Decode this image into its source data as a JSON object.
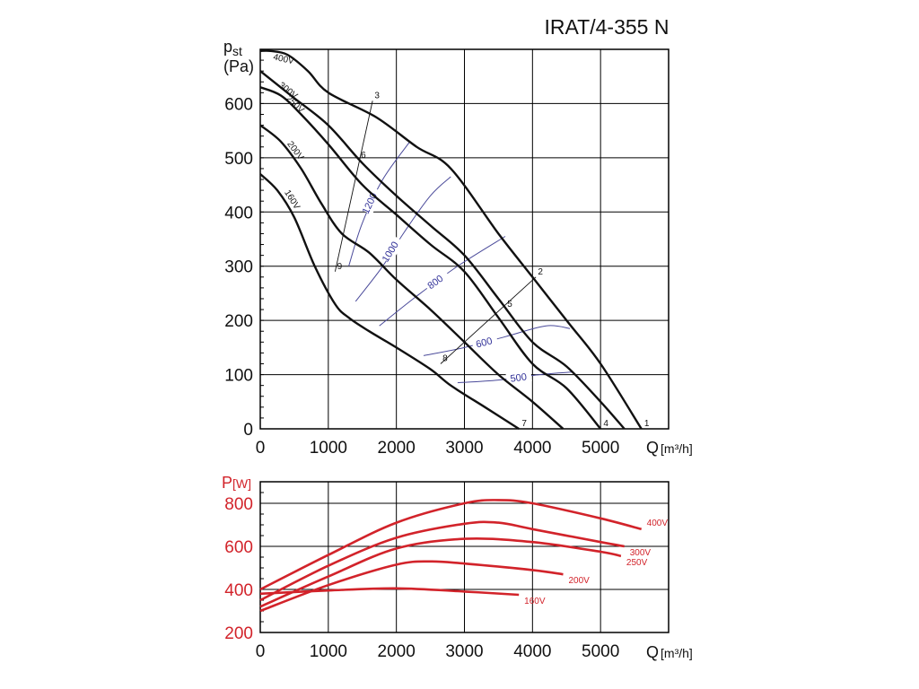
{
  "title": "IRAT/4-355 N",
  "pressure_axis": {
    "symbol": "p",
    "subscript": "st",
    "unit": "(Pa)"
  },
  "power_axis": {
    "symbol": "P",
    "unit": "[W]"
  },
  "flow_axis": {
    "symbol": "Q",
    "unit": "[m³/h]"
  },
  "colors": {
    "pressure": "#111111",
    "efficiency": "#4a4a9a",
    "power": "#d2232a",
    "grid": "#000000"
  },
  "chart_data": [
    {
      "type": "line",
      "name": "pressure",
      "title": "IRAT/4-355 N",
      "xlabel": "Q [m³/h]",
      "ylabel": "p st (Pa)",
      "xlim": [
        0,
        6000
      ],
      "ylim": [
        0,
        700
      ],
      "grid": true,
      "xticks": [
        0,
        1000,
        2000,
        3000,
        4000,
        5000
      ],
      "yticks": [
        0,
        100,
        200,
        300,
        400,
        500,
        600
      ],
      "xtick_labels": [
        "0",
        "1000",
        "2000",
        "3000",
        "4000",
        "5000"
      ],
      "ytick_labels": [
        "0",
        "100",
        "200",
        "300",
        "400",
        "500",
        "600"
      ],
      "series": [
        {
          "name": "400V",
          "x": [
            0,
            150,
            400,
            700,
            1000,
            1700,
            2300,
            2800,
            3500,
            4000,
            4500,
            5000,
            5600
          ],
          "y": [
            697,
            697,
            690,
            660,
            620,
            575,
            520,
            480,
            360,
            280,
            200,
            120,
            0
          ]
        },
        {
          "name": "300V",
          "x": [
            0,
            200,
            500,
            1000,
            1500,
            2000,
            2500,
            3000,
            3500,
            4000,
            4500,
            5000,
            5350
          ],
          "y": [
            660,
            640,
            610,
            560,
            490,
            430,
            375,
            320,
            240,
            160,
            115,
            50,
            0
          ]
        },
        {
          "name": "250V",
          "x": [
            0,
            300,
            600,
            1000,
            1500,
            2000,
            2500,
            3000,
            3500,
            4000,
            4500,
            5000
          ],
          "y": [
            630,
            615,
            580,
            525,
            450,
            395,
            340,
            290,
            205,
            120,
            75,
            0
          ]
        },
        {
          "name": "200V",
          "x": [
            0,
            300,
            600,
            900,
            1200,
            1600,
            2000,
            2500,
            3000,
            3500,
            4000,
            4450
          ],
          "y": [
            560,
            530,
            480,
            415,
            360,
            325,
            275,
            220,
            160,
            100,
            50,
            0
          ]
        },
        {
          "name": "160V",
          "x": [
            0,
            250,
            500,
            800,
            1100,
            1300,
            1600,
            2000,
            2500,
            2800,
            3300,
            3800
          ],
          "y": [
            470,
            440,
            390,
            300,
            230,
            205,
            180,
            150,
            110,
            80,
            40,
            0
          ]
        }
      ],
      "curve_labels": [
        "400V",
        "300V",
        "250V",
        "200V",
        "160V"
      ],
      "efficiency_lines": [
        {
          "label": "1200",
          "x": [
            1300,
            1500,
            1800,
            2200
          ],
          "y": [
            300,
            380,
            460,
            530
          ]
        },
        {
          "label": "1000",
          "x": [
            1400,
            1800,
            2100,
            2500,
            2800
          ],
          "y": [
            235,
            300,
            360,
            430,
            465
          ]
        },
        {
          "label": "800",
          "x": [
            1750,
            2300,
            2900,
            3600
          ],
          "y": [
            190,
            245,
            300,
            355
          ]
        },
        {
          "label": "600",
          "x": [
            2400,
            3000,
            3600,
            4200,
            4550
          ],
          "y": [
            135,
            150,
            170,
            190,
            185
          ]
        },
        {
          "label": "500",
          "x": [
            2900,
            3500,
            4100,
            4600
          ],
          "y": [
            85,
            90,
            100,
            105
          ]
        }
      ],
      "operating_points": [
        {
          "label": "1",
          "x": 5600,
          "y": 0
        },
        {
          "label": "2",
          "x": 4050,
          "y": 280
        },
        {
          "label": "3",
          "x": 1650,
          "y": 605
        },
        {
          "label": "4",
          "x": 5000,
          "y": 0
        },
        {
          "label": "5",
          "x": 3600,
          "y": 220
        },
        {
          "label": "6",
          "x": 1450,
          "y": 495
        },
        {
          "label": "7",
          "x": 3800,
          "y": 0
        },
        {
          "label": "8",
          "x": 2650,
          "y": 120
        },
        {
          "label": "9",
          "x": 1100,
          "y": 290
        }
      ]
    },
    {
      "type": "line",
      "name": "power",
      "xlabel": "Q [m³/h]",
      "ylabel": "P [W]",
      "xlim": [
        0,
        6000
      ],
      "ylim": [
        200,
        900
      ],
      "grid": true,
      "xticks": [
        0,
        1000,
        2000,
        3000,
        4000,
        5000
      ],
      "yticks": [
        200,
        400,
        600,
        800
      ],
      "xtick_labels": [
        "0",
        "1000",
        "2000",
        "3000",
        "4000",
        "5000"
      ],
      "ytick_labels": [
        "200",
        "400",
        "600",
        "800"
      ],
      "series": [
        {
          "name": "400V",
          "x": [
            0,
            1000,
            2000,
            3000,
            3500,
            4000,
            5000,
            5600
          ],
          "y": [
            400,
            560,
            710,
            800,
            815,
            800,
            730,
            680
          ]
        },
        {
          "name": "300V",
          "x": [
            0,
            1000,
            2000,
            3000,
            3500,
            4000,
            5000,
            5350
          ],
          "y": [
            350,
            510,
            640,
            705,
            710,
            680,
            620,
            600
          ]
        },
        {
          "name": "250V",
          "x": [
            0,
            1000,
            2000,
            3000,
            4000,
            5000,
            5300
          ],
          "y": [
            320,
            460,
            590,
            635,
            620,
            575,
            555
          ]
        },
        {
          "name": "200V",
          "x": [
            0,
            1000,
            2000,
            2500,
            3000,
            4000,
            4450
          ],
          "y": [
            300,
            420,
            515,
            530,
            520,
            490,
            470
          ]
        },
        {
          "name": "160V",
          "x": [
            0,
            1000,
            2000,
            3000,
            3800
          ],
          "y": [
            380,
            395,
            405,
            390,
            375
          ]
        }
      ],
      "curve_labels": [
        "400V",
        "300V",
        "250V",
        "200V",
        "160V"
      ]
    }
  ]
}
